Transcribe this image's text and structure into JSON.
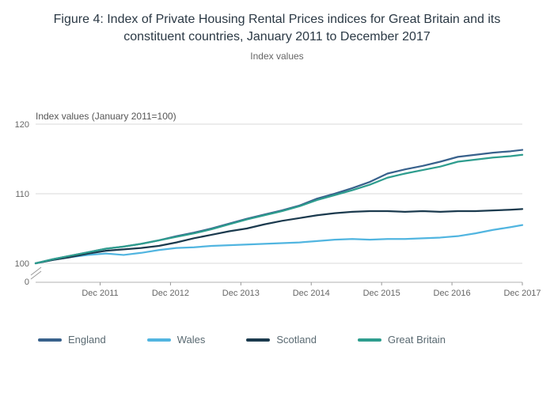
{
  "title": "Figure 4: Index of Private Housing Rental Prices indices for Great Britain and its constituent countries, January 2011 to December 2017",
  "subtitle": "Index values",
  "chart_data": {
    "type": "line",
    "title": "Figure 4: Index of Private Housing Rental Prices indices for Great Britain and its constituent countries, January 2011 to December 2017",
    "subtitle": "Index values",
    "axis_title": "Index values (January 2011=100)",
    "xlabel": "",
    "ylabel": "Index values (January 2011=100)",
    "x_unit": "months since January 2011",
    "xlim": [
      0,
      83
    ],
    "ylim": [
      100,
      120
    ],
    "grid": true,
    "legend_position": "bottom",
    "y_ticks": [
      100,
      110,
      120
    ],
    "y_zero_label": "0",
    "x_ticks": [
      {
        "x": 11,
        "label": "Dec 2011"
      },
      {
        "x": 23,
        "label": "Dec 2012"
      },
      {
        "x": 35,
        "label": "Dec 2013"
      },
      {
        "x": 47,
        "label": "Dec 2014"
      },
      {
        "x": 59,
        "label": "Dec 2015"
      },
      {
        "x": 71,
        "label": "Dec 2016"
      },
      {
        "x": 83,
        "label": "Dec 2017"
      }
    ],
    "x": [
      0,
      3,
      6,
      9,
      12,
      15,
      18,
      21,
      24,
      27,
      30,
      33,
      36,
      39,
      42,
      45,
      48,
      51,
      54,
      57,
      60,
      63,
      66,
      69,
      72,
      75,
      78,
      81,
      83
    ],
    "series": [
      {
        "name": "England",
        "color": "#38618C",
        "values": [
          100,
          100.6,
          101.1,
          101.6,
          102.1,
          102.4,
          102.8,
          103.3,
          103.9,
          104.4,
          105.0,
          105.7,
          106.4,
          107.0,
          107.6,
          108.3,
          109.3,
          110.0,
          110.8,
          111.7,
          112.9,
          113.5,
          114.0,
          114.6,
          115.3,
          115.6,
          115.9,
          116.1,
          116.3
        ]
      },
      {
        "name": "Wales",
        "color": "#51B5E0",
        "values": [
          100,
          100.5,
          100.9,
          101.2,
          101.4,
          101.2,
          101.5,
          101.9,
          102.2,
          102.3,
          102.5,
          102.6,
          102.7,
          102.8,
          102.9,
          103.0,
          103.2,
          103.4,
          103.5,
          103.4,
          103.5,
          103.5,
          103.6,
          103.7,
          103.9,
          104.3,
          104.8,
          105.2,
          105.5
        ]
      },
      {
        "name": "Scotland",
        "color": "#1B3A4E",
        "values": [
          100,
          100.5,
          100.9,
          101.4,
          101.8,
          102.0,
          102.2,
          102.5,
          103.0,
          103.6,
          104.1,
          104.6,
          105.0,
          105.6,
          106.1,
          106.5,
          106.9,
          107.2,
          107.4,
          107.5,
          107.5,
          107.4,
          107.5,
          107.4,
          107.5,
          107.5,
          107.6,
          107.7,
          107.8
        ]
      },
      {
        "name": "Great Britain",
        "color": "#2E9D8E",
        "values": [
          100,
          100.6,
          101.1,
          101.6,
          102.1,
          102.4,
          102.8,
          103.3,
          103.8,
          104.3,
          104.9,
          105.6,
          106.3,
          106.9,
          107.5,
          108.2,
          109.1,
          109.8,
          110.5,
          111.3,
          112.3,
          112.9,
          113.4,
          113.9,
          114.6,
          114.9,
          115.2,
          115.4,
          115.6
        ]
      }
    ],
    "colors": {
      "gridline": "#d9d9d9",
      "axis_line": "#b0b0b0",
      "tick_mark": "#999999",
      "break_mark": "#999999"
    }
  }
}
